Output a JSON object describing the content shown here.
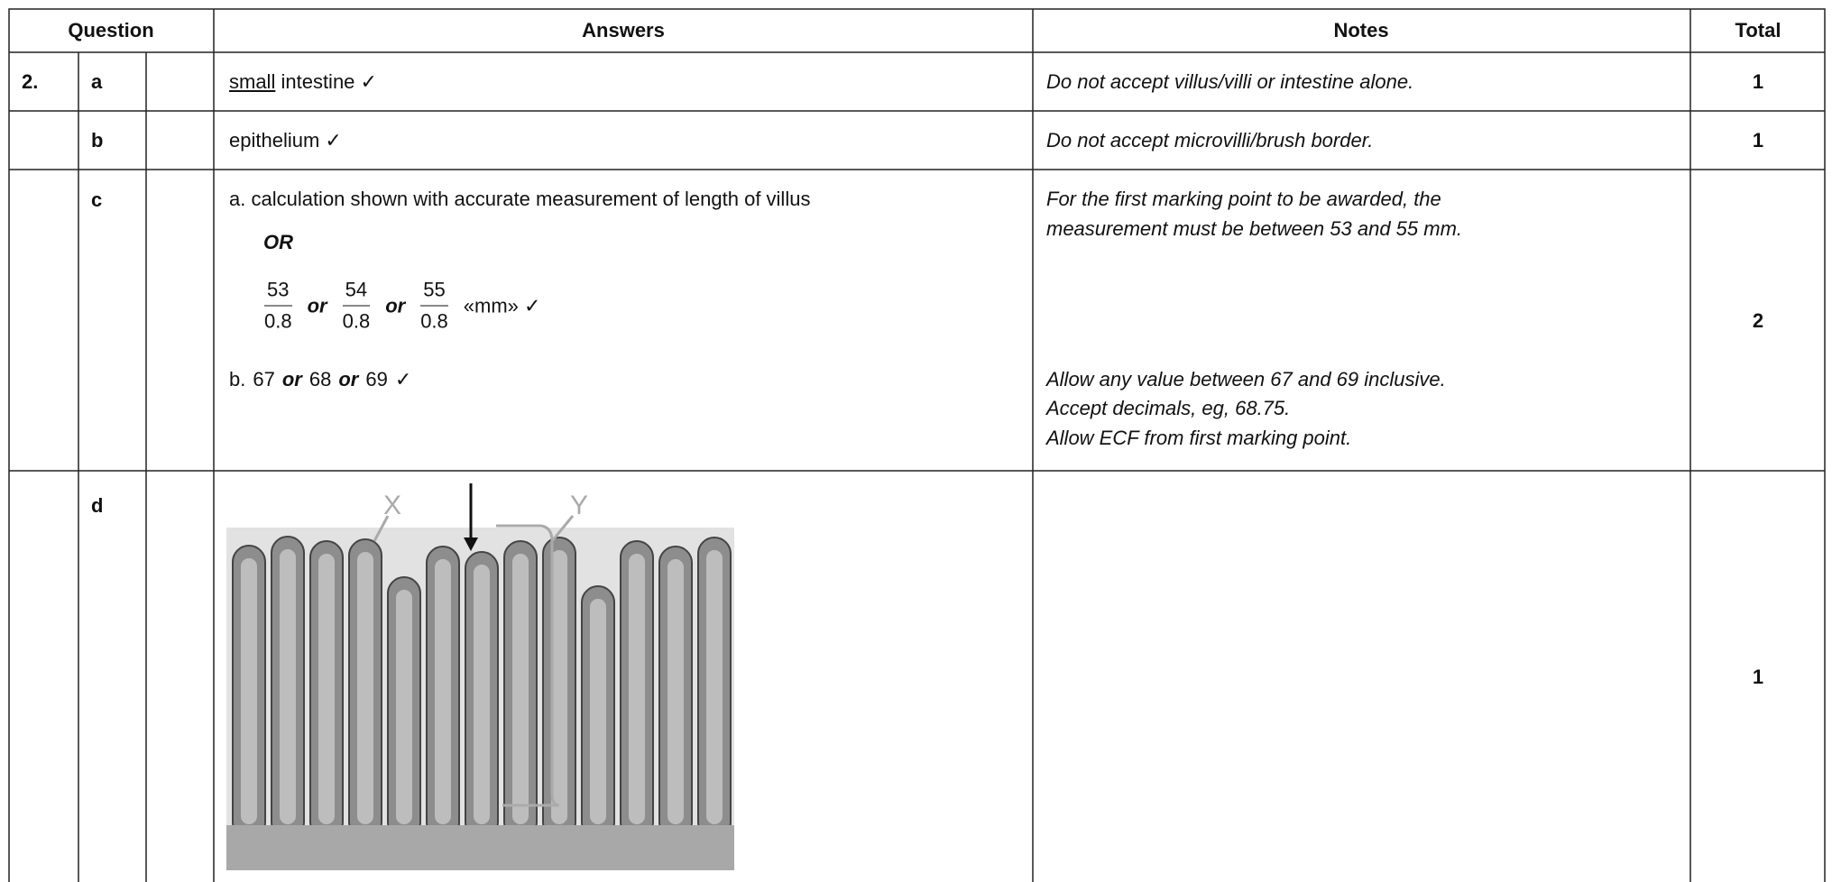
{
  "table": {
    "header": [
      "Question",
      "Answers",
      "Notes",
      "Total"
    ],
    "rows": [
      {
        "number": "2.",
        "part": "a",
        "answer": {
          "underlined": "small",
          "rest": "intestine ✓"
        },
        "notes": [
          "Do not accept villus/villi or intestine alone."
        ],
        "total": "1"
      },
      {
        "part": "b",
        "answer": "epithelium ✓",
        "notes": [
          "Do not accept microvilli/brush border."
        ],
        "total": "1"
      },
      {
        "part": "c",
        "answer": {
          "point_a": "a. calculation shown with accurate measurement of length of villus",
          "alternative": "OR",
          "fractions": [
            {
              "numerator": "53",
              "denominator": "0.8"
            },
            {
              "numerator": "54",
              "denominator": "0.8"
            },
            {
              "numerator": "55",
              "denominator": "0.8"
            }
          ],
          "joins": [
            "or",
            "or"
          ],
          "unit": "«mm» ✓",
          "point_b": {
            "label": "b.",
            "values": [
              "67",
              "68",
              "69"
            ],
            "joins": [
              "or",
              "or"
            ],
            "tick": "✓"
          }
        },
        "notes": [
          "For the first marking point to be awarded, the",
          "measurement must be between 53 and 55 mm."
        ],
        "notes_b": [
          "Allow any value between 67 and 69 inclusive.",
          "Accept decimals, eg, 68.75.",
          "Allow ECF from first marking point."
        ],
        "total": "2"
      },
      {
        "part": "d",
        "figure_labels": [
          "X",
          "Y"
        ],
        "total": "1"
      }
    ]
  }
}
